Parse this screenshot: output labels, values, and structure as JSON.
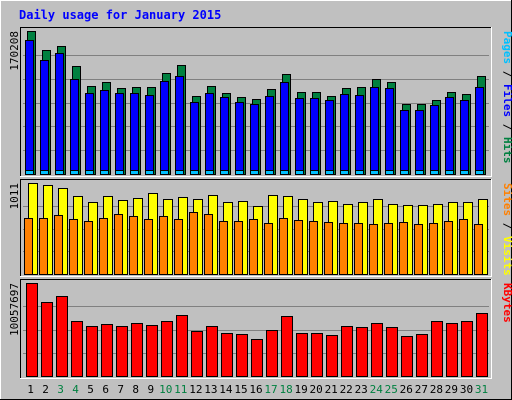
{
  "title": "Daily usage for January 2015",
  "colors": {
    "background": "#c0c0c0",
    "hits": "#008040",
    "files": "#0000ff",
    "pages": "#00c0ff",
    "visits": "#ffff00",
    "sites": "#ff8000",
    "kbytes": "#ff0000",
    "title": "#0000ff",
    "weekend_label": "#008040"
  },
  "chart_data": {
    "type": "bar",
    "x": [
      "1",
      "2",
      "3",
      "4",
      "5",
      "6",
      "7",
      "8",
      "9",
      "10",
      "11",
      "12",
      "13",
      "14",
      "15",
      "16",
      "17",
      "18",
      "19",
      "20",
      "21",
      "22",
      "23",
      "24",
      "25",
      "26",
      "27",
      "28",
      "29",
      "30",
      "31"
    ],
    "weekend_days": [
      "3",
      "4",
      "10",
      "11",
      "17",
      "18",
      "24",
      "25",
      "31"
    ],
    "panels": [
      {
        "name": "hits_files_pages",
        "ymax_label": "170208",
        "ymax": 170208,
        "axis_labels": [
          {
            "text": "Pages",
            "color": "#00c0ff"
          },
          {
            "text": " / ",
            "color": "#000000"
          },
          {
            "text": "Files",
            "color": "#0000ff"
          },
          {
            "text": " / ",
            "color": "#000000"
          },
          {
            "text": "Hits",
            "color": "#008040"
          }
        ],
        "series": [
          {
            "name": "Hits",
            "color": "#008040",
            "values": [
              170208,
              148000,
              152000,
              128000,
              105000,
              109000,
              102000,
              103000,
              103000,
              120000,
              130000,
              93000,
              105000,
              97000,
              92000,
              89000,
              101000,
              119000,
              98000,
              98000,
              93000,
              102000,
              103000,
              113000,
              109000,
              83000,
              83000,
              88000,
              98000,
              95000,
              117000
            ]
          },
          {
            "name": "Files",
            "color": "#0000ff",
            "values": [
              160000,
              136000,
              144000,
              113000,
              97000,
              100000,
              96000,
              97000,
              94000,
              111000,
              117000,
              86000,
              97000,
              92000,
              86000,
              83000,
              93000,
              110000,
              91000,
              91000,
              88000,
              95000,
              94000,
              104000,
              102000,
              76000,
              76000,
              82000,
              92000,
              88000,
              103000
            ]
          },
          {
            "name": "Pages",
            "color": "#00c0ff",
            "values": [
              3800,
              3000,
              3400,
              2800,
              2500,
              2500,
              2600,
              2600,
              2500,
              2700,
              2900,
              2300,
              2500,
              2400,
              2300,
              2200,
              2500,
              2700,
              2400,
              2400,
              2300,
              2500,
              2500,
              2600,
              2500,
              2100,
              2100,
              2200,
              2400,
              2400,
              2700
            ]
          }
        ]
      },
      {
        "name": "visits_sites",
        "ymax_label": "1011",
        "ymax": 1011,
        "axis_labels": [
          {
            "text": "Sites",
            "color": "#ff8000"
          },
          {
            "text": " / ",
            "color": "#000000"
          },
          {
            "text": "Visits",
            "color": "#ffff00"
          }
        ],
        "series": [
          {
            "name": "Visits",
            "color": "#ffff00",
            "values": [
              1011,
              989,
              956,
              867,
              800,
              867,
              822,
              845,
              900,
              833,
              856,
              833,
              878,
              800,
              811,
              760,
              878,
              867,
              833,
              800,
              811,
              778,
              800,
              833,
              778,
              767,
              767,
              778,
              800,
              800,
              833
            ]
          },
          {
            "name": "Sites",
            "color": "#ff8000",
            "values": [
              623,
              623,
              659,
              611,
              589,
              623,
              667,
              643,
              611,
              643,
              611,
              687,
              667,
              589,
              589,
              611,
              567,
              623,
              600,
              589,
              578,
              567,
              567,
              556,
              567,
              578,
              556,
              567,
              589,
              611,
              556
            ]
          }
        ]
      },
      {
        "name": "kbytes",
        "ymax_label": "10057697",
        "ymax": 10057697,
        "axis_labels": [
          {
            "text": "KBytes",
            "color": "#ff0000"
          }
        ],
        "series": [
          {
            "name": "KBytes",
            "color": "#ff0000",
            "values": [
              10057697,
              8000000,
              8600000,
              6000000,
              5400000,
              5600000,
              5400000,
              5700000,
              5500000,
              5900000,
              6600000,
              4900000,
              5400000,
              4700000,
              4500000,
              4000000,
              5000000,
              6500000,
              4700000,
              4700000,
              4400000,
              5400000,
              5300000,
              5700000,
              5300000,
              4300000,
              4500000,
              6000000,
              5700000,
              6000000,
              6800000
            ]
          }
        ]
      }
    ]
  }
}
